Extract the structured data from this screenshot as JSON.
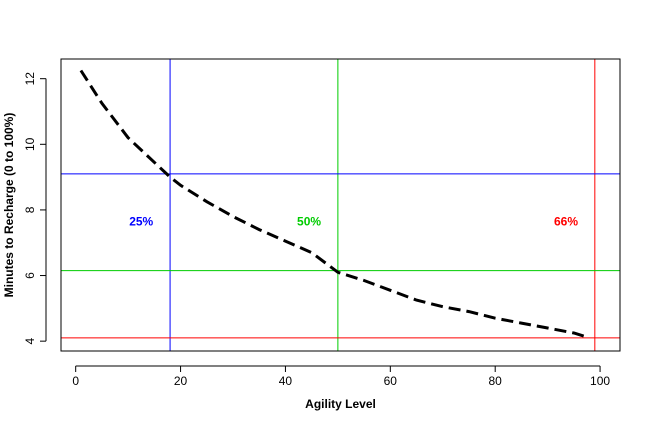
{
  "chart_data": {
    "type": "line",
    "title": "",
    "xlabel": "Agility Level",
    "ylabel": "Minutes to Recharge (0 to 100%)",
    "xlim": [
      -2.8,
      103.8
    ],
    "ylim": [
      3.7,
      12.6
    ],
    "xticks": [
      0,
      20,
      40,
      60,
      80,
      100
    ],
    "yticks": [
      4,
      6,
      8,
      10,
      12
    ],
    "grid": false,
    "legend": "none",
    "series": [
      {
        "color": "#000000",
        "dash": "dashed",
        "x": [
          1,
          5,
          10,
          15,
          18,
          20,
          25,
          30,
          35,
          40,
          45,
          50,
          55,
          60,
          65,
          70,
          75,
          80,
          85,
          90,
          95,
          97
        ],
        "y": [
          12.25,
          11.25,
          10.2,
          9.45,
          9.0,
          8.75,
          8.25,
          7.8,
          7.4,
          7.05,
          6.7,
          6.1,
          5.85,
          5.55,
          5.25,
          5.05,
          4.9,
          4.7,
          4.55,
          4.4,
          4.25,
          4.15
        ]
      }
    ],
    "reference_lines": {
      "vertical": [
        {
          "x": 18,
          "color": "#0000ff"
        },
        {
          "x": 50,
          "color": "#00cc00"
        },
        {
          "x": 99,
          "color": "#ff0000"
        }
      ],
      "horizontal": [
        {
          "y": 9.1,
          "color": "#0000ff"
        },
        {
          "y": 6.15,
          "color": "#00cc00"
        },
        {
          "y": 4.1,
          "color": "#ff0000"
        }
      ]
    },
    "annotations": [
      {
        "text": "25%",
        "x": 12.5,
        "y": 7.65,
        "color": "#0000ff"
      },
      {
        "text": "50%",
        "x": 44.5,
        "y": 7.65,
        "color": "#00cc00"
      },
      {
        "text": "66%",
        "x": 93.5,
        "y": 7.65,
        "color": "#ff0000"
      }
    ]
  }
}
